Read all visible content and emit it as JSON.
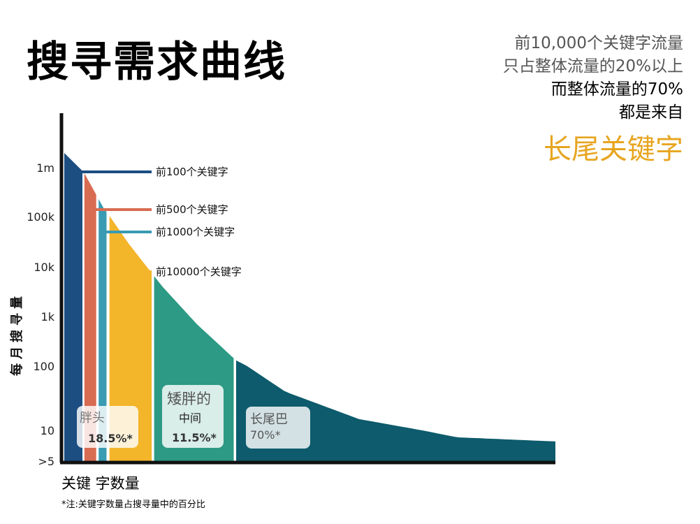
{
  "title": "搜寻需求曲线",
  "side_text": {
    "line1": "前10,000个关键字流量",
    "line2": "只占整体流量的20%以上",
    "line3": "而整体流量的70%",
    "line4": "都是来自",
    "highlight": "长尾关键字"
  },
  "footnote": "*注:关键字数量占搜寻量中的百分比",
  "colors": {
    "head": "#1c4e82",
    "head_thin": "#1c4e82",
    "red": "#d86c52",
    "teal_thin": "#3a9bb2",
    "yellow": "#f3b52a",
    "middle": "#2c9a84",
    "tail": "#0d5b6c"
  },
  "chart_data": {
    "type": "area",
    "ylabel": "每月搜寻量",
    "xlabel": "关键 字数量",
    "y_scale": "log",
    "y_ticks": [
      "1m",
      "100k",
      "10k",
      "1k",
      "100",
      "10",
      ">5"
    ],
    "y_tick_values": [
      1000000,
      100000,
      10000,
      1000,
      100,
      10,
      5
    ],
    "curve": [
      {
        "x": 0,
        "y": 2000000
      },
      {
        "x": 0.04,
        "y": 800000
      },
      {
        "x": 0.08,
        "y": 150000
      },
      {
        "x": 0.1,
        "y": 80000
      },
      {
        "x": 0.13,
        "y": 30000
      },
      {
        "x": 0.2,
        "y": 4000
      },
      {
        "x": 0.27,
        "y": 700
      },
      {
        "x": 0.35,
        "y": 130
      },
      {
        "x": 0.45,
        "y": 40
      },
      {
        "x": 0.6,
        "y": 15
      },
      {
        "x": 0.8,
        "y": 8
      },
      {
        "x": 1,
        "y": 7
      }
    ],
    "segments": [
      {
        "key": "fat-head",
        "label": "胖头",
        "value": "18.5%*",
        "share": 18.5
      },
      {
        "key": "middle",
        "label": "矮胖的",
        "sublabel": "中间",
        "value": "11.5%*",
        "share": 11.5
      },
      {
        "key": "long-tail",
        "label": "长尾巴",
        "value": "70%*",
        "share": 70
      }
    ],
    "thresholds": [
      {
        "label": "前100个关键字",
        "volume": 1000000
      },
      {
        "label": "前500个关键字",
        "volume": 150000
      },
      {
        "label": "前1000个关键字",
        "volume": 80000
      },
      {
        "label": "前10000个关键字",
        "volume": 30000
      }
    ]
  }
}
